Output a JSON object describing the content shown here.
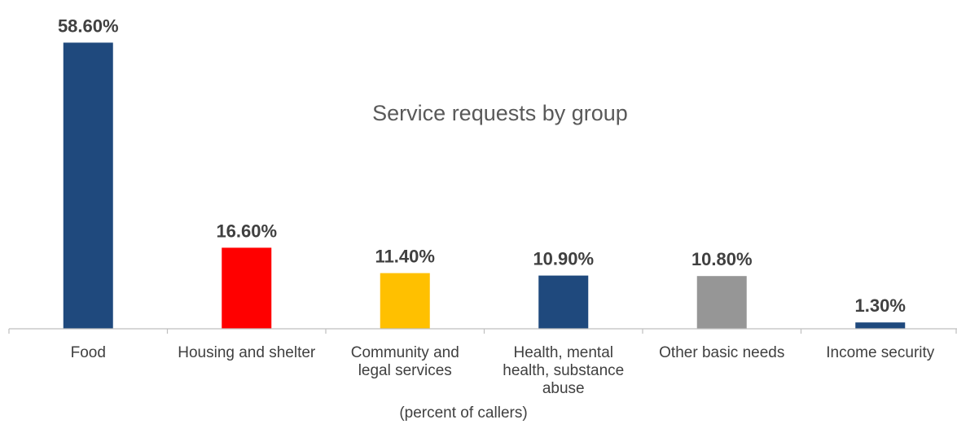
{
  "chart_data": {
    "type": "bar",
    "title": "Service requests by group",
    "xlabel": "(percent of callers)",
    "ylabel": "",
    "ylim": [
      0,
      60
    ],
    "grid": false,
    "legend": "none",
    "categories": [
      "Food",
      "Housing and shelter",
      "Community and legal services",
      "Health, mental health, substance abuse",
      "Other basic needs",
      "Income security"
    ],
    "category_lines": [
      [
        "Food"
      ],
      [
        "Housing and shelter"
      ],
      [
        "Community and",
        "legal services"
      ],
      [
        "Health, mental",
        "health, substance",
        "abuse"
      ],
      [
        "Other basic needs"
      ],
      [
        "Income security"
      ]
    ],
    "values": [
      58.6,
      16.6,
      11.4,
      10.9,
      10.8,
      1.3
    ],
    "data_labels": [
      "58.60%",
      "16.60%",
      "11.40%",
      "10.90%",
      "10.80%",
      "1.30%"
    ],
    "colors": [
      "#1f497d",
      "#ff0000",
      "#ffc000",
      "#1f497d",
      "#969696",
      "#1f497d"
    ],
    "axis_color": "#bfbfbf"
  }
}
